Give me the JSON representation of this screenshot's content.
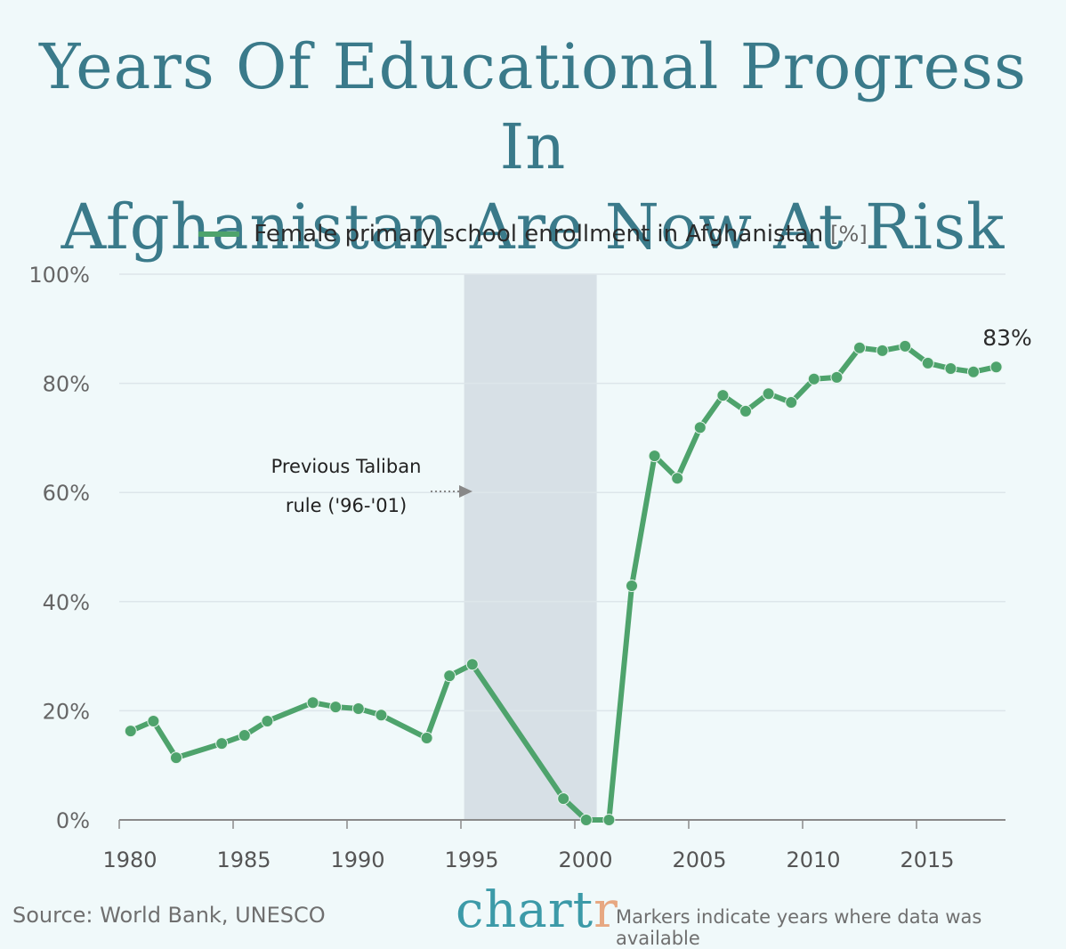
{
  "title": {
    "line1": "Years Of Educational Progress In",
    "line2": "Afghanistan Are Now At Risk"
  },
  "legend": {
    "label": "Female primary school enrollment in Afghanistan",
    "unit": "[%]",
    "color": "#4ea36c"
  },
  "annotation": {
    "line1": "Previous Taliban",
    "line2": "rule ('96-'01)",
    "end_label": "83%"
  },
  "footer": {
    "source": "Source: World Bank, UNESCO",
    "brand_main": "chart",
    "brand_last": "r",
    "note": "Markers indicate years where data was available"
  },
  "colors": {
    "background": "#f0f9fa",
    "title": "#3a7a8a",
    "line": "#4ea36c",
    "shade": "#d7e0e6",
    "grid": "#dde6ea",
    "axis": "#8a8a8a",
    "brand": "#3c9aa8",
    "brand_accent": "#e7a882"
  },
  "chart_data": {
    "type": "line",
    "title": "Years Of Educational Progress In Afghanistan Are Now At Risk",
    "xlabel": "",
    "ylabel": "",
    "xlim": [
      1980,
      2019
    ],
    "ylim": [
      0,
      100
    ],
    "x_ticks": [
      1980,
      1985,
      1990,
      1995,
      2000,
      2005,
      2010,
      2015
    ],
    "y_ticks": [
      0,
      20,
      40,
      60,
      80,
      100
    ],
    "y_tick_labels": [
      "0%",
      "20%",
      "40%",
      "60%",
      "80%",
      "100%"
    ],
    "grid": true,
    "legend_position": "top",
    "shaded_region": {
      "from": 1996,
      "to": 2001,
      "label": "Previous Taliban rule ('96-'01)"
    },
    "series": [
      {
        "name": "Female primary school enrollment in Afghanistan [%]",
        "x": [
          1980,
          1981,
          1982,
          1984,
          1985,
          1986,
          1988,
          1989,
          1990,
          1991,
          1993,
          1994,
          1995,
          1999,
          2000,
          2001,
          2002,
          2003,
          2004,
          2005,
          2006,
          2007,
          2008,
          2009,
          2010,
          2011,
          2012,
          2013,
          2014,
          2015,
          2016,
          2017,
          2018
        ],
        "values": [
          16.3,
          18.1,
          11.4,
          14.0,
          15.5,
          18.1,
          21.5,
          20.7,
          20.4,
          19.2,
          15.0,
          26.4,
          28.5,
          3.9,
          0,
          0,
          42.9,
          66.7,
          62.6,
          71.9,
          77.8,
          74.9,
          78.1,
          76.5,
          80.8,
          81.1,
          86.5,
          86.0,
          86.8,
          83.7,
          82.7,
          82.1,
          83.0
        ]
      }
    ],
    "annotations": [
      {
        "text": "83%",
        "x": 2018,
        "y": 83
      },
      {
        "text": "Previous Taliban rule ('96-'01)",
        "arrow_to": 1996,
        "y": 60
      }
    ],
    "source": "World Bank, UNESCO",
    "note": "Markers indicate years where data was available"
  }
}
